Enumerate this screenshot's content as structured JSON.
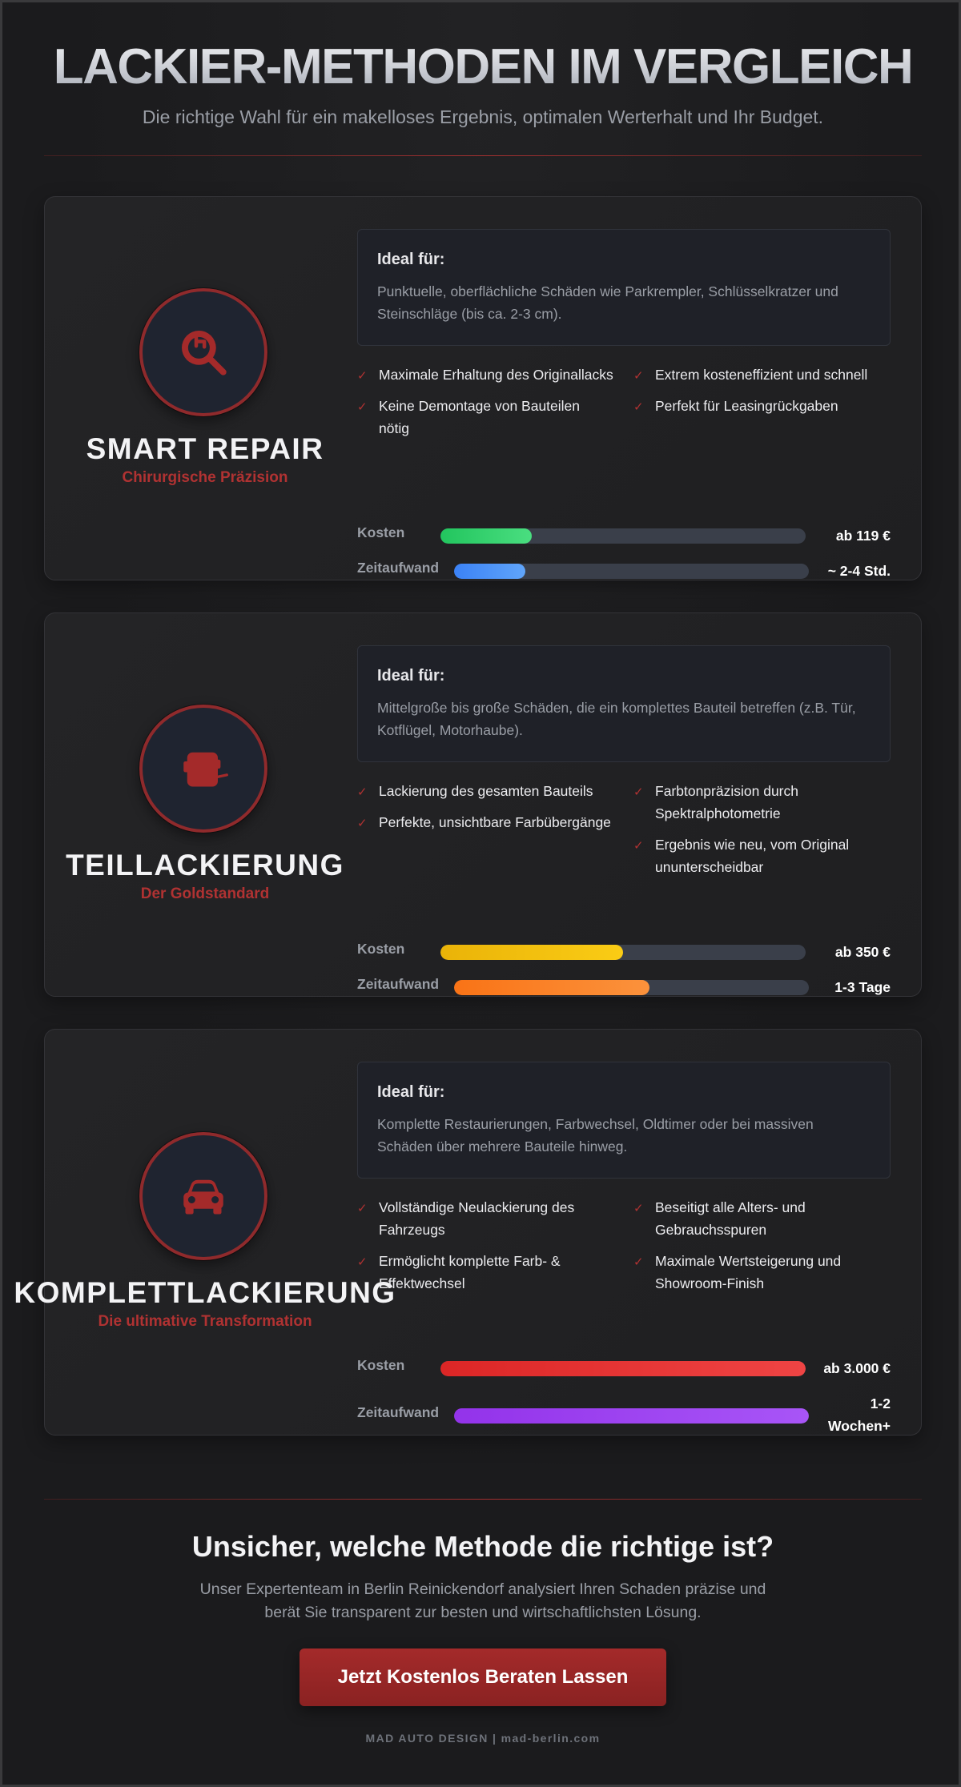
{
  "header": {
    "title": "LACKIER-METHODEN IM VERGLEICH",
    "subtitle": "Die richtige Wahl für ein makelloses Ergebnis, optimalen Werterhalt und Ihr Budget."
  },
  "methods": [
    {
      "name": "SMART REPAIR",
      "tagline": "Chirurgische Präzision",
      "icon": "magnifier-repair-icon",
      "ideal_title": "Ideal für:",
      "ideal_text": "Punktuelle, oberflächliche Schäden wie Parkrempler, Schlüsselkratzer und Steinschläge (bis ca. 2-3 cm).",
      "features_left": [
        "Maximale Erhaltung des Originallacks",
        "Keine Demontage von Bauteilen nötig"
      ],
      "features_right": [
        "Extrem kosteneffizient und schnell",
        "Perfekt für Leasingrückgaben"
      ],
      "cost": {
        "label": "Kosten",
        "value": "ab 119 €",
        "level": 0.25,
        "color_from": "#22c55e",
        "color_to": "#4ade80"
      },
      "time": {
        "label": "Zeitaufwand",
        "value": "~ 2-4 Std.",
        "level": 0.2,
        "color_from": "#3b82f6",
        "color_to": "#60a5fa"
      }
    },
    {
      "name": "TEILLACKIERUNG",
      "tagline": "Der Goldstandard",
      "icon": "car-door-part-icon",
      "ideal_title": "Ideal für:",
      "ideal_text": "Mittelgroße bis große Schäden, die ein komplettes Bauteil betreffen (z.B. Tür, Kotflügel, Motorhaube).",
      "features_left": [
        "Lackierung des gesamten Bauteils",
        "Perfekte, unsichtbare Farbübergänge"
      ],
      "features_right": [
        "Farbtonpräzision durch Spektralphotometrie",
        "Ergebnis wie neu, vom Original ununterscheidbar"
      ],
      "cost": {
        "label": "Kosten",
        "value": "ab 350 €",
        "level": 0.5,
        "color_from": "#eab308",
        "color_to": "#facc15"
      },
      "time": {
        "label": "Zeitaufwand",
        "value": "1-3 Tage",
        "level": 0.55,
        "color_from": "#f97316",
        "color_to": "#fb923c"
      }
    },
    {
      "name": "KOMPLETTLACKIERUNG",
      "tagline": "Die ultimative Transformation",
      "icon": "car-front-icon",
      "ideal_title": "Ideal für:",
      "ideal_text": "Komplette Restaurierungen, Farbwechsel, Oldtimer oder bei massiven Schäden über mehrere Bauteile hinweg.",
      "features_left": [
        "Vollständige Neulackierung des Fahrzeugs",
        "Ermöglicht komplette Farb- & Effektwechsel"
      ],
      "features_right": [
        "Beseitigt alle Alters- und Gebrauchsspuren",
        "Maximale Wertsteigerung und Showroom-Finish"
      ],
      "cost": {
        "label": "Kosten",
        "value": "ab 3.000 €",
        "level": 1.0,
        "color_from": "#dc2626",
        "color_to": "#ef4444"
      },
      "time": {
        "label": "Zeitaufwand",
        "value_line1": "1-2",
        "value_line2": "Wochen+",
        "level": 1.0,
        "color_from": "#9333ea",
        "color_to": "#a855f7"
      }
    }
  ],
  "cta": {
    "title": "Unsicher, welche Methode die richtige ist?",
    "text": "Unser Expertenteam in Berlin Reinickendorf analysiert Ihren Schaden präzise und berät Sie transparent zur besten und wirtschaftlichsten Lösung.",
    "button_label": "Jetzt Kostenlos Beraten Lassen"
  },
  "footer": {
    "text": "MAD AUTO DESIGN | mad-berlin.com"
  },
  "colors": {
    "accent": "#a42a2a",
    "background": "#1b1b1d"
  }
}
